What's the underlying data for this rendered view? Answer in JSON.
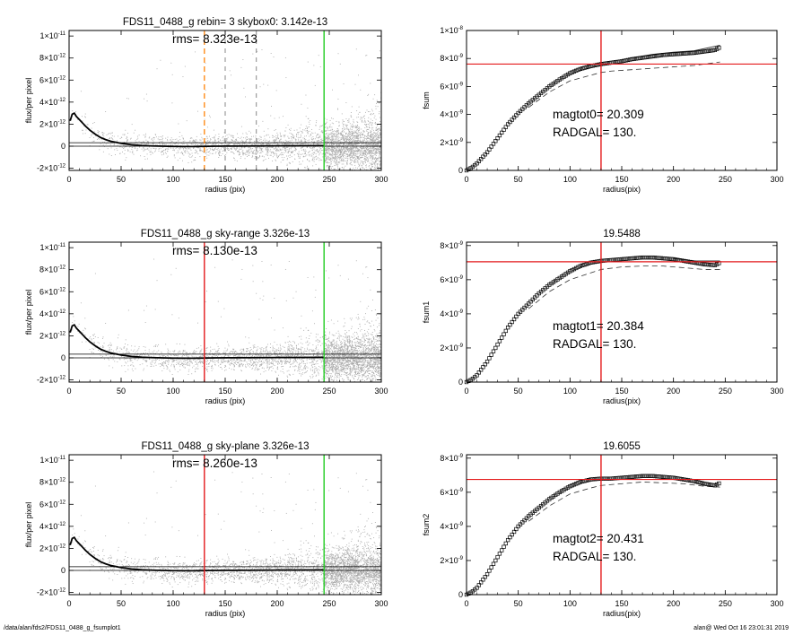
{
  "footer": {
    "left": "/data/alan/fds2/FDS11_0488_g_fsumplot1",
    "right": "alan@  Wed Oct 16 23:01:31 2019"
  },
  "colors": {
    "points": "#a8a8a8",
    "profile": "#000000",
    "red": "#e41a1c",
    "green": "#22cc22",
    "orange": "#ff8c1a",
    "dashed_gray": "#555555"
  },
  "chart_data": [
    {
      "id": "flux0",
      "type": "scatter",
      "title": "FDS11_0488_g rebin= 3    skybox0:  3.142e-13",
      "annotation": "rms= 8.323e-13",
      "xlabel": "radius (pix)",
      "ylabel": "flux/per pixel",
      "xlim": [
        0,
        300
      ],
      "ylim": [
        -2.2e-12,
        1.05e-11
      ],
      "xticks": [
        0,
        50,
        100,
        150,
        200,
        250,
        300
      ],
      "yticks": [
        {
          "v": -2e-12,
          "m": "-2",
          "e": "-12"
        },
        {
          "v": 0,
          "m": "0",
          "e": ""
        },
        {
          "v": 2e-12,
          "m": "2",
          "e": "-12"
        },
        {
          "v": 4e-12,
          "m": "4",
          "e": "-12"
        },
        {
          "v": 6e-12,
          "m": "6",
          "e": "-12"
        },
        {
          "v": 8e-12,
          "m": "8",
          "e": "-12"
        },
        {
          "v": 1e-11,
          "m": "1",
          "e": "-11",
          "pre": "1×10"
        }
      ],
      "profile": {
        "x": [
          1,
          3,
          5,
          7,
          10,
          13,
          16,
          20,
          25,
          30,
          35,
          40,
          50,
          60,
          70,
          80,
          100,
          120,
          140,
          160,
          180,
          200,
          220,
          245
        ],
        "y": [
          2.3e-12,
          2.9e-12,
          3e-12,
          2.7e-12,
          2.4e-12,
          2.1e-12,
          1.8e-12,
          1.45e-12,
          1.1e-12,
          8e-13,
          6e-13,
          4.5e-13,
          2.5e-13,
          1.3e-13,
          6e-14,
          2e-14,
          -2e-14,
          -3e-14,
          0,
          1e-14,
          2e-14,
          3e-14,
          4e-14,
          5e-14
        ]
      },
      "hlines": [
        3.142e-13,
        0
      ],
      "vlines": [
        {
          "x": 130,
          "color": "orange",
          "dash": "6,4"
        },
        {
          "x": 150,
          "color": "gray",
          "dash": "5,5"
        },
        {
          "x": 180,
          "color": "gray",
          "dash": "5,5"
        },
        {
          "x": 245,
          "color": "green"
        }
      ]
    },
    {
      "id": "fsum0",
      "type": "line",
      "title": "",
      "xlabel": "radius(pix)",
      "ylabel": "fsum",
      "xlim": [
        0,
        300
      ],
      "ylim": [
        0,
        1e-08
      ],
      "xticks": [
        0,
        50,
        100,
        150,
        200,
        250,
        300
      ],
      "yticks": [
        {
          "v": 0,
          "m": "0",
          "e": ""
        },
        {
          "v": 2e-09,
          "m": "2",
          "e": "-9"
        },
        {
          "v": 4e-09,
          "m": "4",
          "e": "-9"
        },
        {
          "v": 6e-09,
          "m": "6",
          "e": "-9"
        },
        {
          "v": 8e-09,
          "m": "8",
          "e": "-9"
        },
        {
          "v": 1e-08,
          "m": "1",
          "e": "-8",
          "pre": "1×10"
        }
      ],
      "curve": {
        "x": [
          0,
          5,
          10,
          20,
          30,
          40,
          50,
          60,
          70,
          80,
          90,
          100,
          110,
          120,
          130,
          140,
          150,
          160,
          170,
          180,
          190,
          200,
          210,
          220,
          230,
          240,
          245
        ],
        "y": [
          0,
          2e-10,
          5e-10,
          1.3e-09,
          2.3e-09,
          3.3e-09,
          4.1e-09,
          4.8e-09,
          5.4e-09,
          6e-09,
          6.5e-09,
          6.95e-09,
          7.25e-09,
          7.45e-09,
          7.6e-09,
          7.7e-09,
          7.8e-09,
          7.95e-09,
          8.05e-09,
          8.15e-09,
          8.25e-09,
          8.3e-09,
          8.35e-09,
          8.4e-09,
          8.5e-09,
          8.6e-09,
          8.8e-09
        ]
      },
      "lower": {
        "x": [
          60,
          80,
          100,
          120,
          130,
          140,
          160,
          180,
          200,
          220,
          245
        ],
        "y": [
          4.5e-09,
          5.6e-09,
          6.4e-09,
          6.8e-09,
          7e-09,
          7.1e-09,
          7.2e-09,
          7.3e-09,
          7.4e-09,
          7.5e-09,
          7.75e-09
        ]
      },
      "upper": {
        "x": [
          160,
          180,
          200,
          220,
          245
        ],
        "y": [
          8.05e-09,
          8.3e-09,
          8.45e-09,
          8.55e-09,
          8.95e-09
        ]
      },
      "hline": 7.6e-09,
      "vline": 130,
      "texts": [
        "magtot0=  20.309",
        "RADGAL=    130."
      ]
    },
    {
      "id": "flux1",
      "type": "scatter",
      "title": "FDS11_0488_g sky-range  3.326e-13",
      "annotation": "rms= 8.130e-13",
      "xlabel": "radius (pix)",
      "ylabel": "flux/per pixel",
      "xlim": [
        0,
        300
      ],
      "ylim": [
        -2.2e-12,
        1.05e-11
      ],
      "xticks": [
        0,
        50,
        100,
        150,
        200,
        250,
        300
      ],
      "yticks": [
        {
          "v": -2e-12,
          "m": "-2",
          "e": "-12"
        },
        {
          "v": 0,
          "m": "0",
          "e": ""
        },
        {
          "v": 2e-12,
          "m": "2",
          "e": "-12"
        },
        {
          "v": 4e-12,
          "m": "4",
          "e": "-12"
        },
        {
          "v": 6e-12,
          "m": "6",
          "e": "-12"
        },
        {
          "v": 8e-12,
          "m": "8",
          "e": "-12"
        },
        {
          "v": 1e-11,
          "m": "1",
          "e": "-11",
          "pre": "1×10"
        }
      ],
      "profile": {
        "x": [
          1,
          3,
          5,
          7,
          10,
          13,
          16,
          20,
          25,
          30,
          35,
          40,
          50,
          60,
          70,
          80,
          100,
          120,
          140,
          160,
          180,
          200,
          220,
          245
        ],
        "y": [
          2.3e-12,
          2.9e-12,
          3e-12,
          2.7e-12,
          2.4e-12,
          2.1e-12,
          1.8e-12,
          1.45e-12,
          1.1e-12,
          8e-13,
          6e-13,
          4.5e-13,
          2.5e-13,
          1.3e-13,
          6e-14,
          2e-14,
          -2e-14,
          -3e-14,
          0,
          1e-14,
          2e-14,
          3e-14,
          4e-14,
          5e-14
        ]
      },
      "hlines": [
        3.326e-13,
        0
      ],
      "vlines": [
        {
          "x": 130,
          "color": "red"
        },
        {
          "x": 245,
          "color": "green"
        }
      ]
    },
    {
      "id": "fsum1",
      "type": "line",
      "title": "19.5488",
      "xlabel": "radius(pix)",
      "ylabel": "fsum1",
      "xlim": [
        0,
        300
      ],
      "ylim": [
        0,
        8.2e-09
      ],
      "xticks": [
        0,
        50,
        100,
        150,
        200,
        250,
        300
      ],
      "yticks": [
        {
          "v": 0,
          "m": "0",
          "e": ""
        },
        {
          "v": 2e-09,
          "m": "2",
          "e": "-9"
        },
        {
          "v": 4e-09,
          "m": "4",
          "e": "-9"
        },
        {
          "v": 6e-09,
          "m": "6",
          "e": "-9"
        },
        {
          "v": 8e-09,
          "m": "8",
          "e": "-9"
        }
      ],
      "curve": {
        "x": [
          0,
          5,
          10,
          20,
          30,
          40,
          50,
          60,
          70,
          80,
          90,
          100,
          110,
          120,
          130,
          140,
          150,
          160,
          170,
          180,
          190,
          200,
          210,
          220,
          230,
          240,
          245
        ],
        "y": [
          0,
          1.5e-10,
          4e-10,
          1.2e-09,
          2.2e-09,
          3.2e-09,
          4e-09,
          4.6e-09,
          5.2e-09,
          5.7e-09,
          6.1e-09,
          6.5e-09,
          6.8e-09,
          7e-09,
          7.1e-09,
          7.15e-09,
          7.2e-09,
          7.25e-09,
          7.3e-09,
          7.3e-09,
          7.25e-09,
          7.2e-09,
          7.1e-09,
          7e-09,
          6.9e-09,
          6.85e-09,
          7e-09
        ]
      },
      "lower": {
        "x": [
          60,
          80,
          100,
          120,
          130,
          150,
          170,
          190,
          210,
          230,
          245
        ],
        "y": [
          4.3e-09,
          5.3e-09,
          6e-09,
          6.4e-09,
          6.6e-09,
          6.75e-09,
          6.8e-09,
          6.8e-09,
          6.7e-09,
          6.6e-09,
          6.6e-09
        ]
      },
      "upper": {
        "x": [
          200,
          220,
          245
        ],
        "y": [
          7.25e-09,
          7.1e-09,
          7.1e-09
        ]
      },
      "hline": 7.05e-09,
      "vline": 130,
      "texts": [
        "magtot1=  20.384",
        "RADGAL=    130."
      ]
    },
    {
      "id": "flux2",
      "type": "scatter",
      "title": "FDS11_0488_g sky-plane  3.326e-13",
      "annotation": "rms= 8.260e-13",
      "xlabel": "radius (pix)",
      "ylabel": "flux/per pixel",
      "xlim": [
        0,
        300
      ],
      "ylim": [
        -2.2e-12,
        1.05e-11
      ],
      "xticks": [
        0,
        50,
        100,
        150,
        200,
        250,
        300
      ],
      "yticks": [
        {
          "v": -2e-12,
          "m": "-2",
          "e": "-12"
        },
        {
          "v": 0,
          "m": "0",
          "e": ""
        },
        {
          "v": 2e-12,
          "m": "2",
          "e": "-12"
        },
        {
          "v": 4e-12,
          "m": "4",
          "e": "-12"
        },
        {
          "v": 6e-12,
          "m": "6",
          "e": "-12"
        },
        {
          "v": 8e-12,
          "m": "8",
          "e": "-12"
        },
        {
          "v": 1e-11,
          "m": "1",
          "e": "-11",
          "pre": "1×10"
        }
      ],
      "profile": {
        "x": [
          1,
          3,
          5,
          7,
          10,
          13,
          16,
          20,
          25,
          30,
          35,
          40,
          50,
          60,
          70,
          80,
          100,
          120,
          140,
          160,
          180,
          200,
          220,
          245
        ],
        "y": [
          2.3e-12,
          2.9e-12,
          3e-12,
          2.7e-12,
          2.4e-12,
          2.1e-12,
          1.8e-12,
          1.45e-12,
          1.1e-12,
          8e-13,
          6e-13,
          4.5e-13,
          2.5e-13,
          1.3e-13,
          6e-14,
          2e-14,
          -2e-14,
          -3e-14,
          0,
          1e-14,
          2e-14,
          3e-14,
          4e-14,
          5e-14
        ]
      },
      "hlines": [
        3.326e-13,
        0
      ],
      "vlines": [
        {
          "x": 130,
          "color": "red"
        },
        {
          "x": 245,
          "color": "green"
        }
      ]
    },
    {
      "id": "fsum2",
      "type": "line",
      "title": "19.6055",
      "xlabel": "radius(pix)",
      "ylabel": "fsum2",
      "xlim": [
        0,
        300
      ],
      "ylim": [
        0,
        8.2e-09
      ],
      "xticks": [
        0,
        50,
        100,
        150,
        200,
        250,
        300
      ],
      "yticks": [
        {
          "v": 0,
          "m": "0",
          "e": ""
        },
        {
          "v": 2e-09,
          "m": "2",
          "e": "-9"
        },
        {
          "v": 4e-09,
          "m": "4",
          "e": "-9"
        },
        {
          "v": 6e-09,
          "m": "6",
          "e": "-9"
        },
        {
          "v": 8e-09,
          "m": "8",
          "e": "-9"
        }
      ],
      "curve": {
        "x": [
          0,
          5,
          10,
          20,
          30,
          40,
          50,
          60,
          70,
          80,
          90,
          100,
          110,
          120,
          130,
          140,
          150,
          160,
          170,
          180,
          190,
          200,
          210,
          220,
          230,
          240,
          245
        ],
        "y": [
          0,
          1.5e-10,
          4e-10,
          1.2e-09,
          2.2e-09,
          3.2e-09,
          4e-09,
          4.6e-09,
          5.1e-09,
          5.6e-09,
          6e-09,
          6.35e-09,
          6.6e-09,
          6.75e-09,
          6.8e-09,
          6.8e-09,
          6.85e-09,
          6.9e-09,
          6.95e-09,
          6.95e-09,
          6.9e-09,
          6.85e-09,
          6.75e-09,
          6.65e-09,
          6.5e-09,
          6.4e-09,
          6.55e-09
        ]
      },
      "lower": {
        "x": [
          60,
          80,
          100,
          120,
          130,
          150,
          170,
          190,
          210,
          230,
          245
        ],
        "y": [
          4.3e-09,
          5.2e-09,
          5.9e-09,
          6.25e-09,
          6.4e-09,
          6.5e-09,
          6.6e-09,
          6.55e-09,
          6.5e-09,
          6.35e-09,
          6.3e-09
        ]
      },
      "upper": {
        "x": [],
        "y": []
      },
      "hline": 6.75e-09,
      "vline": 130,
      "texts": [
        "magtot2=  20.431",
        "RADGAL=    130."
      ]
    }
  ]
}
